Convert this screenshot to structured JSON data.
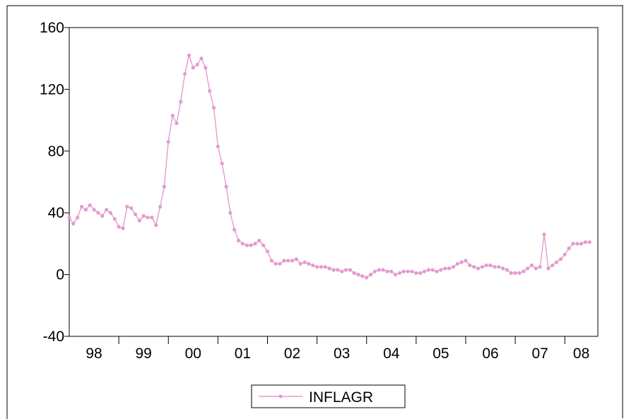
{
  "chart_data": {
    "type": "line",
    "title": "",
    "xlabel": "",
    "ylabel": "",
    "ylim": [
      -40,
      160
    ],
    "yticks": [
      -40,
      0,
      40,
      80,
      120,
      160
    ],
    "ytick_labels": [
      "-40",
      "0",
      "40",
      "80",
      "120",
      "160"
    ],
    "xlim": [
      1998.0,
      2008.667
    ],
    "xtick_labels": [
      "98",
      "99",
      "00",
      "01",
      "02",
      "03",
      "04",
      "05",
      "06",
      "07",
      "08"
    ],
    "grid": false,
    "legend_position": "bottom",
    "series": [
      {
        "name": "INFLAGR",
        "color": "#e39bcf",
        "start_year": 1998,
        "start_month": 1,
        "values": [
          37,
          33,
          37,
          44,
          42,
          45,
          42,
          40,
          38,
          42,
          40,
          36,
          31,
          30,
          44,
          43,
          39,
          35,
          38,
          37,
          37,
          32,
          44,
          57,
          86,
          103,
          98,
          112,
          130,
          142,
          134,
          136,
          140,
          134,
          119,
          108,
          83,
          72,
          57,
          40,
          29,
          22,
          20,
          19,
          19,
          20,
          22,
          19,
          15,
          9,
          7,
          7,
          9,
          9,
          9,
          10,
          7,
          8,
          7,
          6,
          5,
          5,
          5,
          4,
          3,
          3,
          2,
          3,
          3,
          1,
          0,
          -1,
          -2,
          0,
          2,
          3,
          3,
          2,
          2,
          0,
          1,
          2,
          2,
          2,
          1,
          1,
          2,
          3,
          3,
          2,
          3,
          4,
          4,
          5,
          7,
          8,
          9,
          6,
          5,
          4,
          5,
          6,
          6,
          5,
          5,
          4,
          3,
          1,
          1,
          1,
          2,
          4,
          6,
          4,
          5,
          26,
          4,
          6,
          8,
          10,
          13,
          17,
          20,
          20,
          20,
          21,
          21
        ]
      }
    ]
  }
}
